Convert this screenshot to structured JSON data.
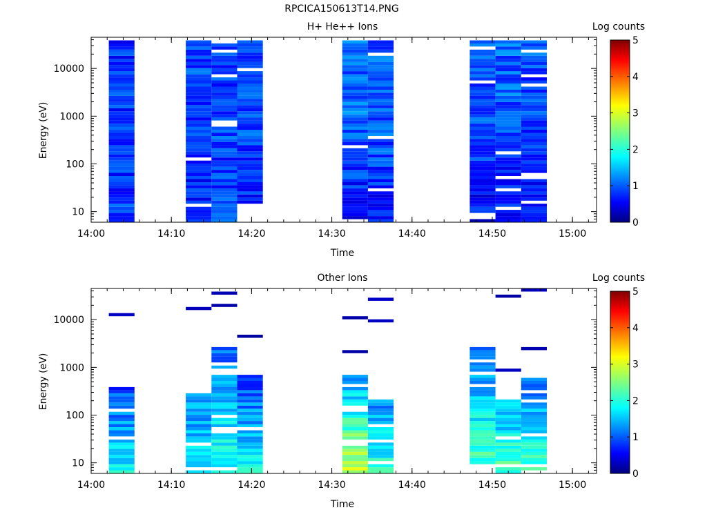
{
  "figure": {
    "title": "RPCICA150613T14.PNG"
  },
  "chart_data": [
    {
      "type": "heatmap",
      "title": "H+ He++ Ions",
      "xlabel": "Time",
      "ylabel": "Energy (eV)",
      "colorbar_label": "Log counts",
      "colorbar_ticks": [
        "0",
        "1",
        "2",
        "3",
        "4",
        "5"
      ],
      "color_range": [
        0,
        5
      ],
      "x_ticks": [
        "14:00",
        "14:10",
        "14:20",
        "14:30",
        "14:40",
        "14:50",
        "15:00"
      ],
      "x_range_minutes": [
        0,
        63
      ],
      "y_ticks": [
        "10",
        "100",
        "1000",
        "10000"
      ],
      "y_scale": "log",
      "y_range": [
        6,
        45000
      ],
      "grid": false,
      "columns": [
        {
          "start": 2.2,
          "end": 5.4,
          "emin": 6,
          "emax": 40000,
          "seed": 11,
          "base": [
            0.9,
            0.85,
            0.8
          ],
          "zero_frac": 0.0
        },
        {
          "start": 11.8,
          "end": 15.0,
          "emin": 6,
          "emax": 40000,
          "seed": 23,
          "base": [
            0.7,
            0.9,
            0.95
          ],
          "zero_frac": 0.03
        },
        {
          "start": 15.0,
          "end": 18.2,
          "emin": 6,
          "emax": 36000,
          "seed": 37,
          "base": [
            0.9,
            0.95,
            0.9
          ],
          "zero_frac": 0.06
        },
        {
          "start": 18.2,
          "end": 21.4,
          "emin": 15,
          "emax": 40000,
          "seed": 41,
          "base": [
            0.75,
            0.95,
            1.0
          ],
          "zero_frac": 0.04
        },
        {
          "start": 31.3,
          "end": 34.5,
          "emin": 6,
          "emax": 40000,
          "seed": 53,
          "base": [
            0.6,
            1.1,
            1.15
          ],
          "zero_frac": 0.03
        },
        {
          "start": 34.5,
          "end": 37.7,
          "emin": 6,
          "emax": 40000,
          "seed": 67,
          "base": [
            0.7,
            1.05,
            1.05
          ],
          "zero_frac": 0.05
        },
        {
          "start": 47.2,
          "end": 50.4,
          "emin": 6,
          "emax": 40000,
          "seed": 71,
          "base": [
            0.6,
            0.95,
            1.0
          ],
          "zero_frac": 0.05
        },
        {
          "start": 50.4,
          "end": 53.6,
          "emin": 6,
          "emax": 40000,
          "seed": 83,
          "base": [
            0.6,
            1.05,
            1.1
          ],
          "zero_frac": 0.07
        },
        {
          "start": 53.6,
          "end": 56.8,
          "emin": 6,
          "emax": 40000,
          "seed": 97,
          "base": [
            0.6,
            0.95,
            1.0
          ],
          "zero_frac": 0.05
        }
      ]
    },
    {
      "type": "heatmap",
      "title": "Other Ions",
      "xlabel": "Time",
      "ylabel": "Energy (eV)",
      "colorbar_label": "Log counts",
      "colorbar_ticks": [
        "0",
        "1",
        "2",
        "3",
        "4",
        "5"
      ],
      "color_range": [
        0,
        5
      ],
      "x_ticks": [
        "14:00",
        "14:10",
        "14:20",
        "14:30",
        "14:40",
        "14:50",
        "15:00"
      ],
      "x_range_minutes": [
        0,
        63
      ],
      "y_ticks": [
        "10",
        "100",
        "1000",
        "10000"
      ],
      "y_scale": "log",
      "y_range": [
        6,
        45000
      ],
      "grid": false,
      "columns": [
        {
          "start": 2.2,
          "end": 5.4,
          "emin": 6,
          "emax": 380,
          "seed": 101,
          "base": [
            1.9,
            0.9,
            0.4
          ],
          "zero_frac": 0.12,
          "extra": [
            12000
          ]
        },
        {
          "start": 11.8,
          "end": 15.0,
          "emin": 6,
          "emax": 280,
          "seed": 113,
          "base": [
            1.8,
            1.2,
            0.6
          ],
          "zero_frac": 0.08,
          "extra": [
            16500
          ]
        },
        {
          "start": 15.0,
          "end": 18.2,
          "emin": 6,
          "emax": 2600,
          "seed": 127,
          "base": [
            2.0,
            1.4,
            0.6
          ],
          "zero_frac": 0.25,
          "extra": [
            19500,
            35000
          ]
        },
        {
          "start": 18.2,
          "end": 21.4,
          "emin": 6,
          "emax": 700,
          "seed": 131,
          "base": [
            2.0,
            1.0,
            0.5
          ],
          "zero_frac": 0.1,
          "extra": [
            4300
          ]
        },
        {
          "start": 31.3,
          "end": 34.5,
          "emin": 6,
          "emax": 750,
          "seed": 149,
          "base": [
            2.9,
            1.5,
            0.5
          ],
          "zero_frac": 0.15,
          "extra": [
            2200,
            11000
          ]
        },
        {
          "start": 34.5,
          "end": 37.7,
          "emin": 6,
          "emax": 270,
          "seed": 151,
          "base": [
            2.2,
            1.0,
            0.4
          ],
          "zero_frac": 0.2,
          "extra": [
            9500,
            28000
          ]
        },
        {
          "start": 47.2,
          "end": 50.4,
          "emin": 9,
          "emax": 2500,
          "seed": 163,
          "base": [
            2.3,
            1.5,
            0.6
          ],
          "zero_frac": 0.15,
          "extra": [
            850
          ]
        },
        {
          "start": 50.4,
          "end": 53.6,
          "emin": 6,
          "emax": 200,
          "seed": 173,
          "base": [
            2.2,
            1.3,
            0.5
          ],
          "zero_frac": 0.1,
          "extra": [
            850,
            31000
          ]
        },
        {
          "start": 53.6,
          "end": 56.8,
          "emin": 6,
          "emax": 600,
          "seed": 181,
          "base": [
            2.3,
            1.1,
            0.5
          ],
          "zero_frac": 0.1,
          "extra": [
            2600,
            39000
          ]
        }
      ]
    }
  ]
}
